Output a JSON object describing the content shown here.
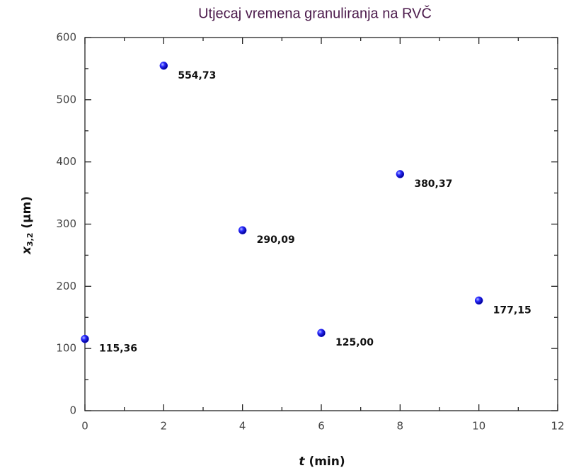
{
  "chart_data": {
    "type": "scatter",
    "title": "Utjecaj vremena granuliranja na RVČ",
    "xlabel": {
      "symbol": "t",
      "unit": "(min)"
    },
    "ylabel": {
      "symbol": "x",
      "subscript": "3,2",
      "unit": "(µm)"
    },
    "x": [
      0,
      2,
      4,
      6,
      8,
      10
    ],
    "series": [
      {
        "color": "#1a1aff",
        "values": [
          115.36,
          554.73,
          290.09,
          125.0,
          380.37,
          177.15
        ],
        "value_labels": [
          "115,36",
          "554,73",
          "290,09",
          "125,00",
          "380,37",
          "177,15"
        ]
      }
    ],
    "xlim": [
      0,
      12
    ],
    "xticks": [
      0,
      2,
      4,
      6,
      8,
      10,
      12
    ],
    "xminor_ticks": [
      1,
      3,
      5,
      7,
      9,
      11
    ],
    "ylim": [
      0,
      600
    ],
    "yticks": [
      0,
      100,
      200,
      300,
      400,
      500,
      600
    ],
    "yminor_ticks": [
      50,
      150,
      250,
      350,
      450,
      550
    ]
  }
}
